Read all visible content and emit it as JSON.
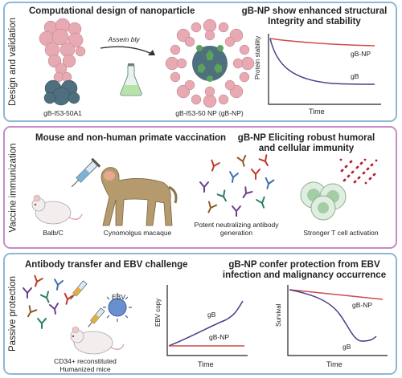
{
  "panels": [
    {
      "side_label": "Design and validation",
      "title_left": "Computational design of nanoparticle",
      "title_right_1": "gB-NP show enhanced structural",
      "title_right_2": "Integrity and stability",
      "arrow_label": "Assem bly",
      "label_monomer": "gB-I53-50A1",
      "label_np": "gB-I53-50 NP (gB-NP)",
      "chart": {
        "ylabel": "Protein stability",
        "xlabel": "Time",
        "series_top": "gB-NP",
        "series_bottom": "gB"
      }
    },
    {
      "side_label": "Vaccine immunization",
      "title_left": "Mouse and non-human primate vaccination",
      "title_right_1": "gB-NP Eliciting robust humoral",
      "title_right_2": "and cellular immunity",
      "label_mouse": "Balb/C",
      "label_macaque": "Cynomolgus macaque",
      "label_antibody_1": "Potent neutralizing antibody",
      "label_antibody_2": "generation",
      "label_tcell": "Stronger T cell activation"
    },
    {
      "side_label": "Passive protection",
      "title_left": "Antibody transfer and EBV challenge",
      "title_right_1": "gB-NP confer protection from EBV",
      "title_right_2": "infection and malignancy occurrence",
      "label_ebv": "EBV",
      "label_mice_1": "CD34+ reconstituted",
      "label_mice_2": "Humanized mice",
      "chart_copy": {
        "ylabel": "EBV copy",
        "xlabel": "Time",
        "series_top": "gB",
        "series_bottom": "gB-NP"
      },
      "chart_survival": {
        "ylabel": "Survival",
        "xlabel": "Time",
        "series_top": "gB-NP",
        "series_bottom": "gB"
      }
    }
  ],
  "colors": {
    "border_blue": "#8fb7d6",
    "border_purple": "#c88ac6",
    "np_line": "#d04a4a",
    "gb_line": "#4a3e8c",
    "protein_pink": "#e7a9b2",
    "protein_teal": "#4e6f7d",
    "pentamer_green": "#5aa35a"
  },
  "chart_data": [
    {
      "type": "line",
      "title": "",
      "xlabel": "Time",
      "ylabel": "Protein stability",
      "series": [
        {
          "name": "gB-NP",
          "values": [
            0.95,
            0.93,
            0.91,
            0.89,
            0.88
          ]
        },
        {
          "name": "gB",
          "values": [
            0.95,
            0.45,
            0.25,
            0.17,
            0.15
          ]
        }
      ]
    },
    {
      "type": "line",
      "title": "",
      "xlabel": "Time",
      "ylabel": "EBV copy",
      "series": [
        {
          "name": "gB",
          "values": [
            0.1,
            0.3,
            0.45,
            0.6,
            0.9
          ]
        },
        {
          "name": "gB-NP",
          "values": [
            0.1,
            0.1,
            0.1,
            0.1,
            0.1
          ]
        }
      ]
    },
    {
      "type": "line",
      "title": "",
      "xlabel": "Time",
      "ylabel": "Survival",
      "series": [
        {
          "name": "gB-NP",
          "values": [
            0.95,
            0.93,
            0.91,
            0.88,
            0.86
          ]
        },
        {
          "name": "gB",
          "values": [
            0.95,
            0.9,
            0.8,
            0.45,
            0.2
          ]
        }
      ]
    }
  ]
}
